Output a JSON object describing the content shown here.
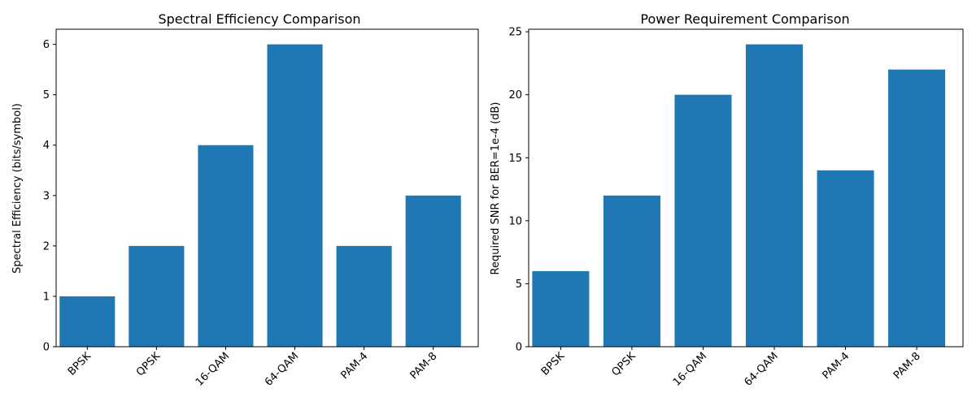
{
  "chart_data": [
    {
      "type": "bar",
      "title": "Spectral Efficiency Comparison",
      "xlabel": "",
      "ylabel": "Spectral Efficiency (bits/symbol)",
      "categories": [
        "BPSK",
        "QPSK",
        "16-QAM",
        "64-QAM",
        "PAM-4",
        "PAM-8"
      ],
      "values": [
        1,
        2,
        4,
        6,
        2,
        3
      ],
      "ylim": [
        0,
        6.3
      ],
      "yticks": [
        0,
        1,
        2,
        3,
        4,
        5,
        6
      ],
      "bar_color": "#1f77b4",
      "grid": false,
      "xtick_rotation": 45
    },
    {
      "type": "bar",
      "title": "Power Requirement Comparison",
      "xlabel": "",
      "ylabel": "Required SNR for BER=1e-4 (dB)",
      "categories": [
        "BPSK",
        "QPSK",
        "16-QAM",
        "64-QAM",
        "PAM-4",
        "PAM-8"
      ],
      "values": [
        6,
        12,
        20,
        24,
        14,
        22
      ],
      "ylim": [
        0,
        25.2
      ],
      "yticks": [
        0,
        5,
        10,
        15,
        20,
        25
      ],
      "bar_color": "#1f77b4",
      "grid": false,
      "xtick_rotation": 45
    }
  ]
}
